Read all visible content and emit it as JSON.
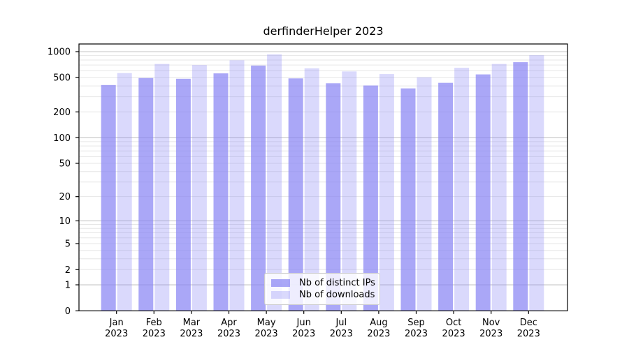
{
  "figure": {
    "title": "derfinderHelper 2023"
  },
  "chart_data": {
    "type": "bar",
    "title": "derfinderHelper 2023",
    "categories": [
      "Jan 2023",
      "Feb 2023",
      "Mar 2023",
      "Apr 2023",
      "May 2023",
      "Jun 2023",
      "Jul 2023",
      "Aug 2023",
      "Sep 2023",
      "Oct 2023",
      "Nov 2023",
      "Dec 2023"
    ],
    "x_tick_months": [
      "Jan",
      "Feb",
      "Mar",
      "Apr",
      "May",
      "Jun",
      "Jul",
      "Aug",
      "Sep",
      "Oct",
      "Nov",
      "Dec"
    ],
    "x_tick_year": "2023",
    "series": [
      {
        "name": "Nb of distinct IPs",
        "color": "rgba(134,129,244,0.7)",
        "values": [
          410,
          495,
          485,
          560,
          690,
          490,
          430,
          405,
          375,
          435,
          545,
          755
        ]
      },
      {
        "name": "Nb of downloads",
        "color": "rgba(134,129,244,0.3)",
        "values": [
          565,
          720,
          700,
          795,
          930,
          640,
          590,
          550,
          505,
          650,
          720,
          910
        ]
      }
    ],
    "y_scale": "log1p",
    "ylim": [
      0,
      1000
    ],
    "y_ticks": [
      0,
      1,
      2,
      5,
      10,
      20,
      50,
      100,
      200,
      500,
      1000
    ],
    "y_major_gridlines": [
      1,
      10,
      100,
      1000
    ],
    "y_minor_gridlines": [
      2,
      3,
      4,
      5,
      6,
      7,
      8,
      9,
      20,
      30,
      40,
      50,
      60,
      70,
      80,
      90,
      200,
      300,
      400,
      500,
      600,
      700,
      800,
      900
    ],
    "grid": true,
    "legend_position": "lower center"
  },
  "colors": {
    "bar_base": "#8681f4",
    "axis": "#000000",
    "tick_label": "#000000",
    "major_grid": "#c4c4c4",
    "minor_grid": "#e6e6e6",
    "legend_border": "#cccccc"
  }
}
